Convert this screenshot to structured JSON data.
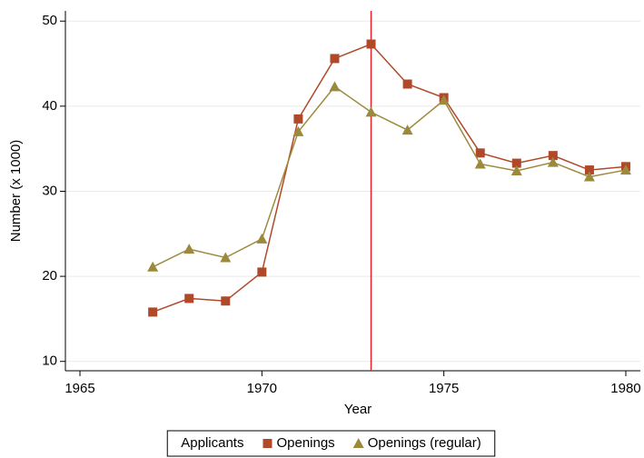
{
  "chart_data": {
    "type": "line",
    "x_label": "Year",
    "y_label": "Number (x 1000)",
    "x": [
      1967,
      1968,
      1969,
      1970,
      1971,
      1972,
      1973,
      1974,
      1975,
      1976,
      1977,
      1978,
      1979,
      1980
    ],
    "series": [
      {
        "name": "Applicants",
        "values": [
          null,
          null,
          null,
          null,
          null,
          null,
          null,
          null,
          null,
          null,
          null,
          null,
          null,
          null
        ]
      },
      {
        "name": "Openings",
        "color": "#b0492a",
        "marker": "square",
        "values": [
          15.8,
          17.4,
          17.1,
          20.5,
          38.5,
          45.6,
          47.3,
          42.6,
          41.0,
          34.5,
          33.3,
          34.2,
          32.5,
          32.9
        ]
      },
      {
        "name": "Openings (regular)",
        "color": "#9c8a3c",
        "marker": "triangle",
        "values": [
          21.1,
          23.2,
          22.2,
          24.4,
          37.0,
          42.3,
          39.3,
          37.2,
          40.7,
          33.2,
          32.4,
          33.4,
          31.7,
          32.5
        ]
      }
    ],
    "xlim": [
      1964.6,
      1980.4
    ],
    "xticks": [
      1965,
      1970,
      1975,
      1980
    ],
    "ylim": [
      8.9,
      51.2
    ],
    "yticks": [
      10,
      20,
      30,
      40,
      50
    ],
    "grid": true,
    "vline": 1973,
    "vline_color": "#e8202a",
    "legend": "bottom"
  }
}
